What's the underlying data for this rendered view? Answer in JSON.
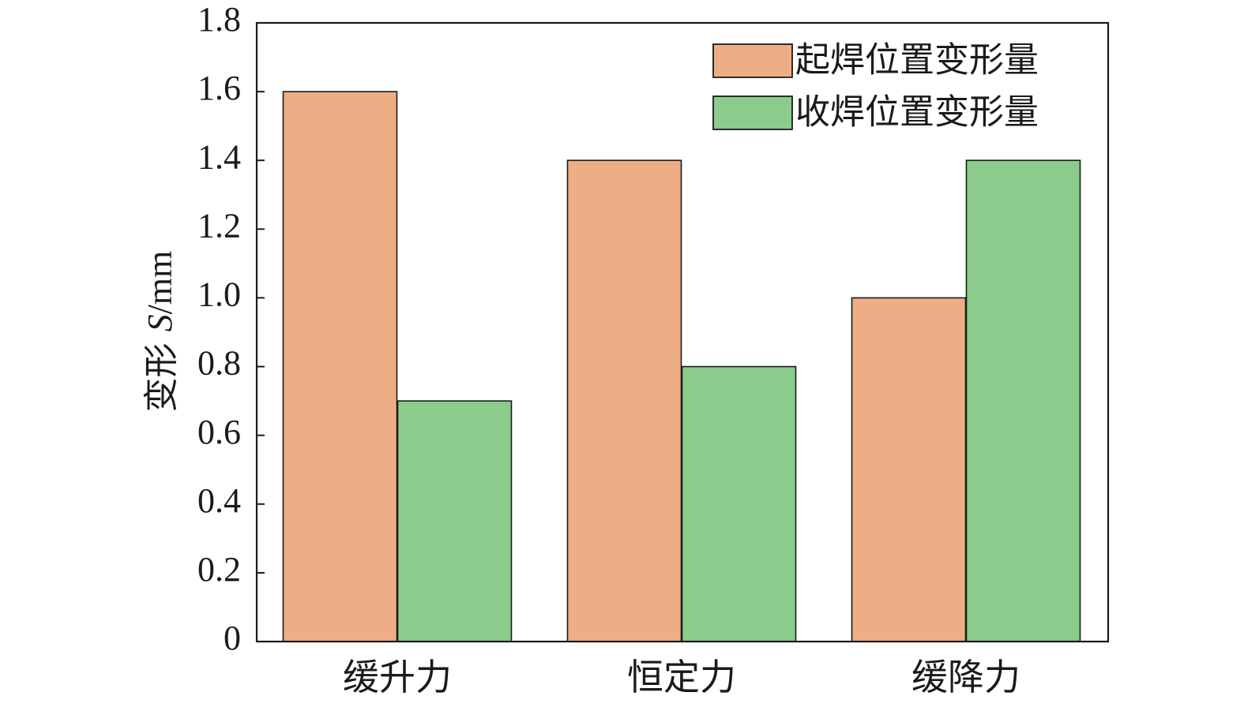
{
  "chart_data": {
    "type": "bar",
    "categories": [
      "缓升力",
      "恒定力",
      "缓降力"
    ],
    "series": [
      {
        "name": "起焊位置变形量",
        "values": [
          1.6,
          1.4,
          1.0
        ],
        "color": "#EDAE85"
      },
      {
        "name": "收焊位置变形量",
        "values": [
          0.7,
          0.8,
          1.4
        ],
        "color": "#8BCB8B"
      }
    ],
    "ylabel": {
      "prefix": "变形 ",
      "italic": "S",
      "suffix": "/mm"
    },
    "xlabel": "",
    "ylim": [
      0,
      1.8
    ],
    "yticks": [
      0,
      0.2,
      0.4,
      0.6,
      0.8,
      1.0,
      1.2,
      1.4,
      1.6,
      1.8
    ],
    "ytick_labels": [
      "0",
      "0.2",
      "0.4",
      "0.6",
      "0.8",
      "1.0",
      "1.2",
      "1.4",
      "1.6",
      "1.8"
    ],
    "grid": false,
    "legend_position": "top-right"
  }
}
